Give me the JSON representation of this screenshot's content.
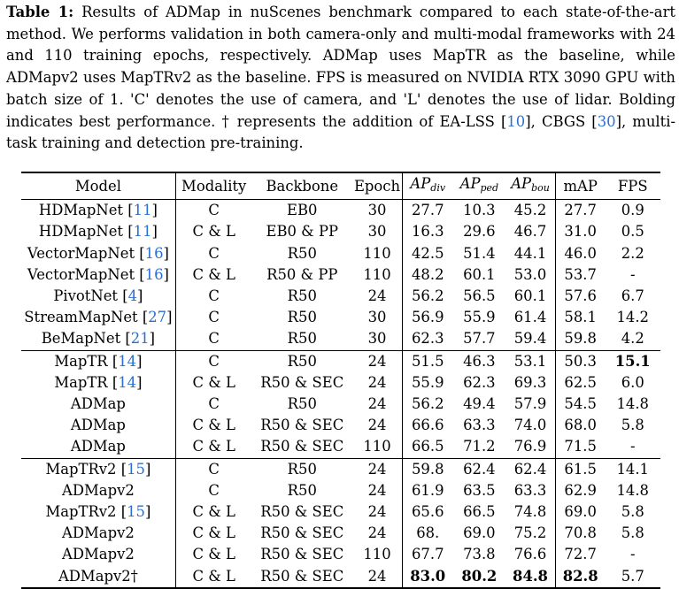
{
  "caption": {
    "label": "Table 1:",
    "text_1": " Results of ADMap in nuScenes benchmark compared to each state-of-the-art method. We performs validation in both camera-only and multi-modal frameworks with 24 and 110 training epochs, respectively. ADMap uses MapTR as the baseline, while ADMapv2 uses MapTRv2 as the baseline. FPS is measured on NVIDIA RTX 3090 GPU with batch size of 1. 'C' denotes the use of camera, and 'L' denotes the use of lidar. Bolding indicates best performance. † represents the addition of EA-LSS [",
    "ref_1": "10",
    "text_2": "], CBGS [",
    "ref_2": "30",
    "text_3": "], multi-task training and detection pre-training."
  },
  "table": {
    "headers": {
      "model": "Model",
      "modality": "Modality",
      "backbone": "Backbone",
      "epoch": "Epoch",
      "ap": "AP",
      "ap_div_sub": "div",
      "ap_ped_sub": "ped",
      "ap_bou_sub": "bou",
      "map": "mAP",
      "fps": "FPS"
    },
    "rows": [
      {
        "model": "HDMapNet",
        "ref": "11",
        "modality": "C",
        "backbone": "EB0",
        "epoch": "30",
        "ap_div": "27.7",
        "ap_ped": "10.3",
        "ap_bou": "45.2",
        "map": "27.7",
        "fps": "0.9"
      },
      {
        "model": "HDMapNet",
        "ref": "11",
        "modality": "C & L",
        "backbone": "EB0 & PP",
        "epoch": "30",
        "ap_div": "16.3",
        "ap_ped": "29.6",
        "ap_bou": "46.7",
        "map": "31.0",
        "fps": "0.5"
      },
      {
        "model": "VectorMapNet",
        "ref": "16",
        "modality": "C",
        "backbone": "R50",
        "epoch": "110",
        "ap_div": "42.5",
        "ap_ped": "51.4",
        "ap_bou": "44.1",
        "map": "46.0",
        "fps": "2.2"
      },
      {
        "model": "VectorMapNet",
        "ref": "16",
        "modality": "C & L",
        "backbone": "R50 & PP",
        "epoch": "110",
        "ap_div": "48.2",
        "ap_ped": "60.1",
        "ap_bou": "53.0",
        "map": "53.7",
        "fps": "-"
      },
      {
        "model": "PivotNet",
        "ref": "4",
        "modality": "C",
        "backbone": "R50",
        "epoch": "24",
        "ap_div": "56.2",
        "ap_ped": "56.5",
        "ap_bou": "60.1",
        "map": "57.6",
        "fps": "6.7"
      },
      {
        "model": "StreamMapNet",
        "ref": "27",
        "modality": "C",
        "backbone": "R50",
        "epoch": "30",
        "ap_div": "56.9",
        "ap_ped": "55.9",
        "ap_bou": "61.4",
        "map": "58.1",
        "fps": "14.2"
      },
      {
        "model": "BeMapNet",
        "ref": "21",
        "modality": "C",
        "backbone": "R50",
        "epoch": "30",
        "ap_div": "62.3",
        "ap_ped": "57.7",
        "ap_bou": "59.4",
        "map": "59.8",
        "fps": "4.2"
      },
      {
        "model": "MapTR",
        "ref": "14",
        "modality": "C",
        "backbone": "R50",
        "epoch": "24",
        "ap_div": "51.5",
        "ap_ped": "46.3",
        "ap_bou": "53.1",
        "map": "50.3",
        "fps": "15.1"
      },
      {
        "model": "MapTR",
        "ref": "14",
        "modality": "C & L",
        "backbone": "R50 & SEC",
        "epoch": "24",
        "ap_div": "55.9",
        "ap_ped": "62.3",
        "ap_bou": "69.3",
        "map": "62.5",
        "fps": "6.0"
      },
      {
        "model": "ADMap",
        "ref": "",
        "modality": "C",
        "backbone": "R50",
        "epoch": "24",
        "ap_div": "56.2",
        "ap_ped": "49.4",
        "ap_bou": "57.9",
        "map": "54.5",
        "fps": "14.8"
      },
      {
        "model": "ADMap",
        "ref": "",
        "modality": "C & L",
        "backbone": "R50 & SEC",
        "epoch": "24",
        "ap_div": "66.6",
        "ap_ped": "63.3",
        "ap_bou": "74.0",
        "map": "68.0",
        "fps": "5.8"
      },
      {
        "model": "ADMap",
        "ref": "",
        "modality": "C & L",
        "backbone": "R50 & SEC",
        "epoch": "110",
        "ap_div": "66.5",
        "ap_ped": "71.2",
        "ap_bou": "76.9",
        "map": "71.5",
        "fps": "-"
      },
      {
        "model": "MapTRv2",
        "ref": "15",
        "modality": "C",
        "backbone": "R50",
        "epoch": "24",
        "ap_div": "59.8",
        "ap_ped": "62.4",
        "ap_bou": "62.4",
        "map": "61.5",
        "fps": "14.1"
      },
      {
        "model": "ADMapv2",
        "ref": "",
        "modality": "C",
        "backbone": "R50",
        "epoch": "24",
        "ap_div": "61.9",
        "ap_ped": "63.5",
        "ap_bou": "63.3",
        "map": "62.9",
        "fps": "14.8"
      },
      {
        "model": "MapTRv2",
        "ref": "15",
        "modality": "C & L",
        "backbone": "R50 & SEC",
        "epoch": "24",
        "ap_div": "65.6",
        "ap_ped": "66.5",
        "ap_bou": "74.8",
        "map": "69.0",
        "fps": "5.8"
      },
      {
        "model": "ADMapv2",
        "ref": "",
        "modality": "C & L",
        "backbone": "R50 & SEC",
        "epoch": "24",
        "ap_div": "68.",
        "ap_ped": "69.0",
        "ap_bou": "75.2",
        "map": "70.8",
        "fps": "5.8"
      },
      {
        "model": "ADMapv2",
        "ref": "",
        "modality": "C & L",
        "backbone": "R50 & SEC",
        "epoch": "110",
        "ap_div": "67.7",
        "ap_ped": "73.8",
        "ap_bou": "76.6",
        "map": "72.7",
        "fps": "-"
      },
      {
        "model": "ADMapv2†",
        "ref": "",
        "modality": "C & L",
        "backbone": "R50 & SEC",
        "epoch": "24",
        "ap_div": "83.0",
        "ap_ped": "80.2",
        "ap_bou": "84.8",
        "map": "82.8",
        "fps": "5.7"
      }
    ]
  }
}
